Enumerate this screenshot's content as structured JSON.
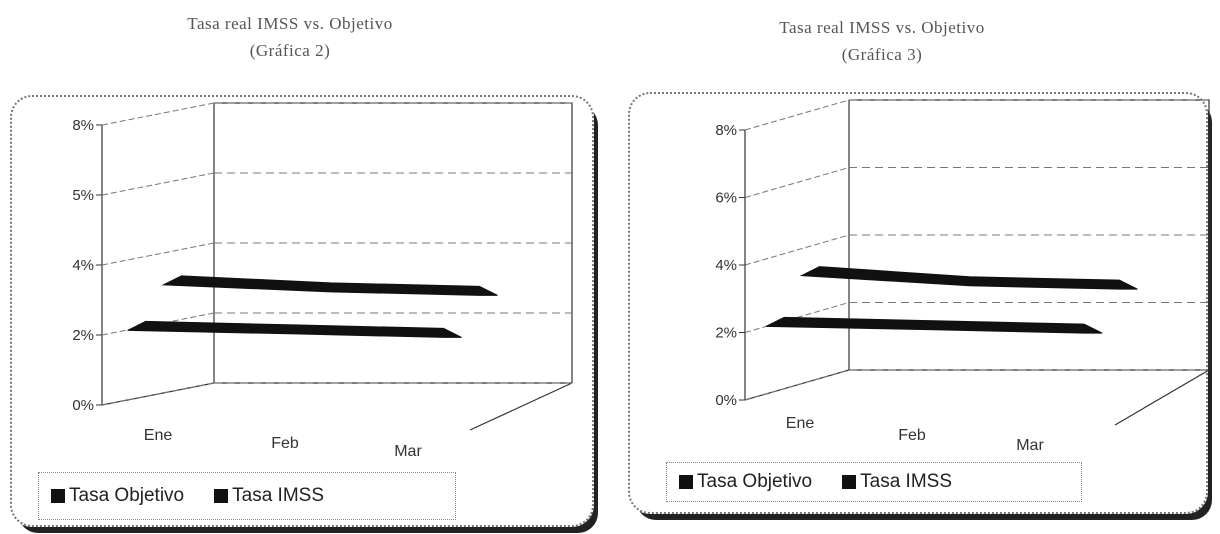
{
  "chart_data": [
    {
      "type": "line",
      "subtype": "3d-ribbon",
      "title": "Tasa real IMSS vs. Objetivo",
      "subtitle": "(Gráfica 2)",
      "categories": [
        "Ene",
        "Feb",
        "Mar"
      ],
      "ytick_labels": [
        "0%",
        "2%",
        "4%",
        "5%",
        "8%"
      ],
      "ylim": [
        0,
        8
      ],
      "grid": true,
      "legend_position": "bottom",
      "series": [
        {
          "name": "Tasa Objetivo",
          "values": [
            2.2,
            2.1,
            2.0
          ]
        },
        {
          "name": "Tasa IMSS",
          "values": [
            3.3,
            3.1,
            3.0
          ]
        }
      ]
    },
    {
      "type": "line",
      "subtype": "3d-ribbon",
      "title": "Tasa real IMSS vs. Objetivo",
      "subtitle": "(Gráfica 3)",
      "categories": [
        "Ene",
        "Feb",
        "Mar"
      ],
      "ytick_labels": [
        "0%",
        "2%",
        "4%",
        "6%",
        "8%"
      ],
      "ylim": [
        0,
        8
      ],
      "grid": true,
      "legend_position": "bottom",
      "series": [
        {
          "name": "Tasa Objetivo",
          "values": [
            2.2,
            2.1,
            2.0
          ]
        },
        {
          "name": "Tasa IMSS",
          "values": [
            3.4,
            3.1,
            3.0
          ]
        }
      ]
    }
  ],
  "colors": {
    "series": "#111111",
    "axis": "#333333",
    "grid": "#777777",
    "frame": "#777777"
  }
}
